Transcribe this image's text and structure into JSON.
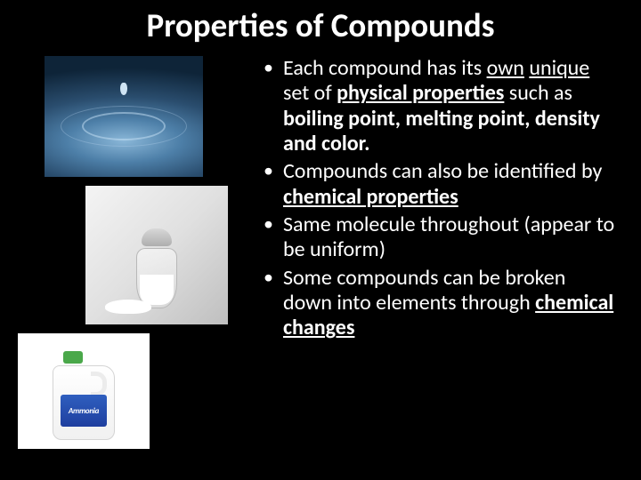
{
  "title": "Properties of Compounds",
  "title_color": "#ffffff",
  "title_fontsize": 37,
  "background_color": "#000000",
  "text_color": "#ffffff",
  "body_fontsize": 24,
  "images": {
    "water": {
      "name": "water-droplet",
      "bg_gradient_outer": "#0e2438",
      "bg_gradient_inner": "#8ab7d8"
    },
    "salt": {
      "name": "salt-shaker",
      "bg": "#e8e8e8"
    },
    "ammonia": {
      "name": "ammonia-jug",
      "label_text": "Ammonia",
      "label_bg": "#2f5fbf",
      "cap_color": "#4aa84a"
    }
  },
  "bullets": [
    {
      "runs": [
        {
          "t": "Each compound has its ",
          "b": false,
          "u": false
        },
        {
          "t": "own",
          "b": false,
          "u": true
        },
        {
          "t": " ",
          "b": false,
          "u": false
        },
        {
          "t": "unique",
          "b": false,
          "u": true
        },
        {
          "t": " set of ",
          "b": false,
          "u": false
        },
        {
          "t": "physical properties",
          "b": true,
          "u": true
        },
        {
          "t": " such as ",
          "b": false,
          "u": false
        },
        {
          "t": "boiling point, melting point, density and color.",
          "b": true,
          "u": false
        }
      ]
    },
    {
      "runs": [
        {
          "t": "Compounds can also be identified by ",
          "b": false,
          "u": false
        },
        {
          "t": "chemical properties",
          "b": true,
          "u": true
        }
      ]
    },
    {
      "runs": [
        {
          "t": "Same molecule throughout (appear to be uniform)",
          "b": false,
          "u": false
        }
      ]
    },
    {
      "runs": [
        {
          "t": "Some compounds can be broken down into elements through ",
          "b": false,
          "u": false
        },
        {
          "t": "chemical changes",
          "b": true,
          "u": true
        }
      ]
    }
  ]
}
